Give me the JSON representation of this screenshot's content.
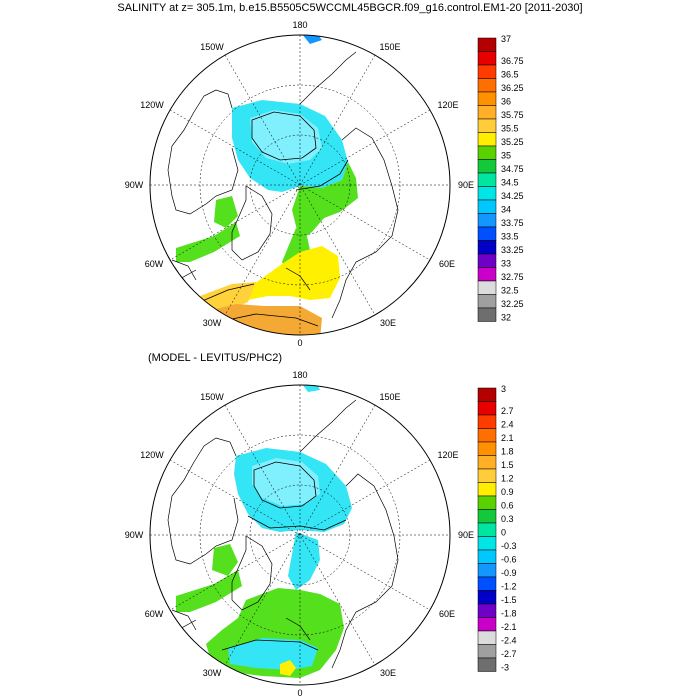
{
  "title": "SALINITY at z= 305.1m, b.e15.B5505C5WCCML45BGCR.f09_g16.control.EM1-20 [2011-2030]",
  "subtitle": "(MODEL - LEVITUS/PHC2)",
  "longitude_labels": {
    "top": "180",
    "bottom": "0",
    "p150w": "150W",
    "p150e": "150E",
    "p120w": "120W",
    "p120e": "120E",
    "p90w": "90W",
    "p90e": "90E",
    "p60w": "60W",
    "p60e": "60E",
    "p30w": "30W",
    "p30e": "30E"
  },
  "colorbar_top": {
    "labels": [
      "37",
      "36.75",
      "36.5",
      "36.25",
      "36",
      "35.75",
      "35.5",
      "35.25",
      "35",
      "34.75",
      "34.5",
      "34.25",
      "34",
      "33.75",
      "33.5",
      "33.25",
      "33",
      "32.75",
      "32.5",
      "32.25",
      "32"
    ],
    "colors": [
      "#b40000",
      "#e60000",
      "#ff3c00",
      "#ff6e00",
      "#ff9100",
      "#ffaf28",
      "#ffcd3c",
      "#ffee00",
      "#5ad200",
      "#14c83c",
      "#00e6a0",
      "#00e6e6",
      "#00c8ff",
      "#1496ff",
      "#0050ff",
      "#0000c8",
      "#6e00c8",
      "#c800c8",
      "#dcdcdc",
      "#a0a0a0",
      "#6e6e6e"
    ]
  },
  "colorbar_bottom": {
    "labels": [
      "3",
      "2.7",
      "2.4",
      "2.1",
      "1.8",
      "1.5",
      "1.2",
      "0.9",
      "0.6",
      "0.3",
      "0",
      "-0.3",
      "-0.6",
      "-0.9",
      "-1.2",
      "-1.5",
      "-1.8",
      "-2.1",
      "-2.4",
      "-2.7",
      "-3"
    ],
    "colors": [
      "#b40000",
      "#e60000",
      "#ff3c00",
      "#ff6e00",
      "#ff9100",
      "#ffaf28",
      "#ffcd3c",
      "#ffee00",
      "#5ad200",
      "#14c83c",
      "#00e6a0",
      "#00e6e6",
      "#00c8ff",
      "#1496ff",
      "#0050ff",
      "#0000c8",
      "#6e00c8",
      "#c800c8",
      "#dcdcdc",
      "#a0a0a0",
      "#6e6e6e"
    ]
  },
  "colors": {
    "cyan": "#33e5f5",
    "lightcyan": "#80f0ff",
    "green": "#55e01e",
    "yellow": "#fff000",
    "gold": "#ffd23c",
    "orange": "#f5a935",
    "teal": "#2fdf9a",
    "land": "#ffffff",
    "outline": "#000000"
  }
}
